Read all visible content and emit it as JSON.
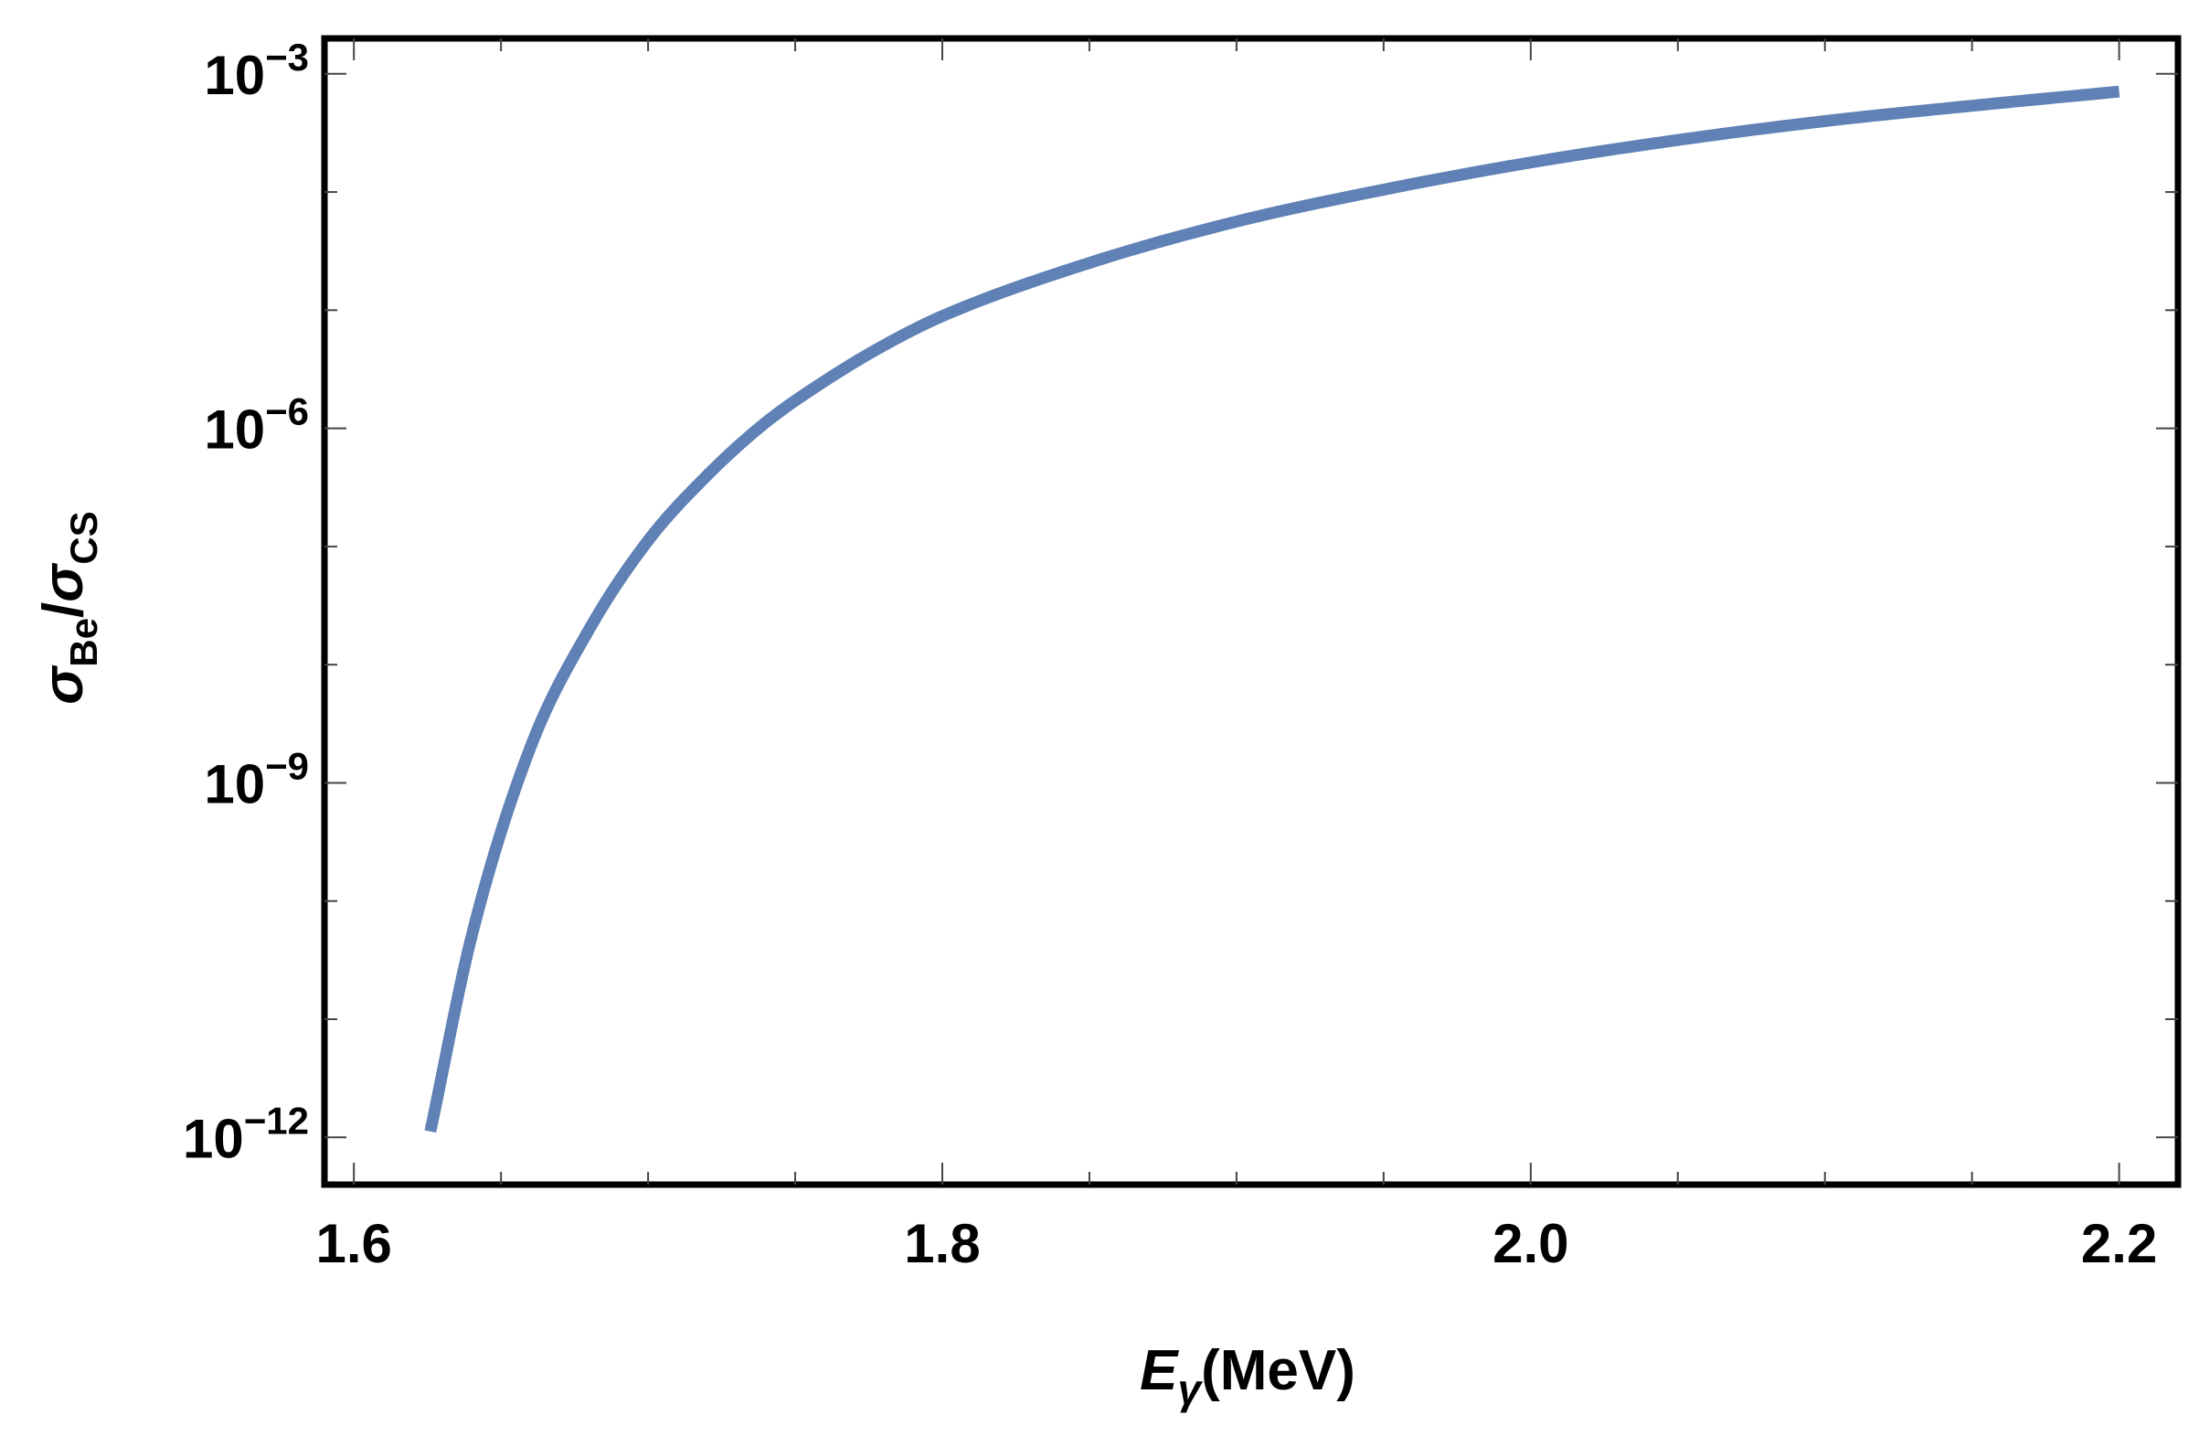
{
  "chart_data": {
    "type": "line",
    "title": "",
    "xlabel": {
      "symbol": "E",
      "subscript": "γ",
      "unit": "(MeV)"
    },
    "ylabel": {
      "numerator_symbol": "σ",
      "numerator_subscript": "Be",
      "separator": "/",
      "denominator_symbol": "σ",
      "denominator_subscript": "CS"
    },
    "xlim": [
      1.59,
      2.22
    ],
    "ylim_log10": [
      -12.4,
      -2.7
    ],
    "y_scale": "log",
    "x_ticks": [
      {
        "value": 1.6,
        "label": "1.6"
      },
      {
        "value": 1.8,
        "label": "1.8"
      },
      {
        "value": 2.0,
        "label": "2.0"
      },
      {
        "value": 2.2,
        "label": "2.2"
      }
    ],
    "y_ticks": [
      {
        "exponent": -12,
        "base": "10",
        "exp_label": "−12"
      },
      {
        "exponent": -9,
        "base": "10",
        "exp_label": "−9"
      },
      {
        "exponent": -6,
        "base": "10",
        "exp_label": "−6"
      },
      {
        "exponent": -3,
        "base": "10",
        "exp_label": "−3"
      }
    ],
    "grid": false,
    "series": [
      {
        "color": "#5f81b5",
        "x": [
          1.626,
          1.64,
          1.66,
          1.68,
          1.7,
          1.72,
          1.74,
          1.76,
          1.78,
          1.8,
          1.85,
          1.9,
          1.95,
          2.0,
          2.05,
          2.1,
          2.15,
          2.2
        ],
        "log10_y": [
          -11.95,
          -10.3,
          -8.7,
          -7.7,
          -6.95,
          -6.4,
          -5.95,
          -5.6,
          -5.3,
          -5.05,
          -4.6,
          -4.25,
          -3.98,
          -3.75,
          -3.56,
          -3.4,
          -3.27,
          -3.15
        ]
      }
    ]
  }
}
